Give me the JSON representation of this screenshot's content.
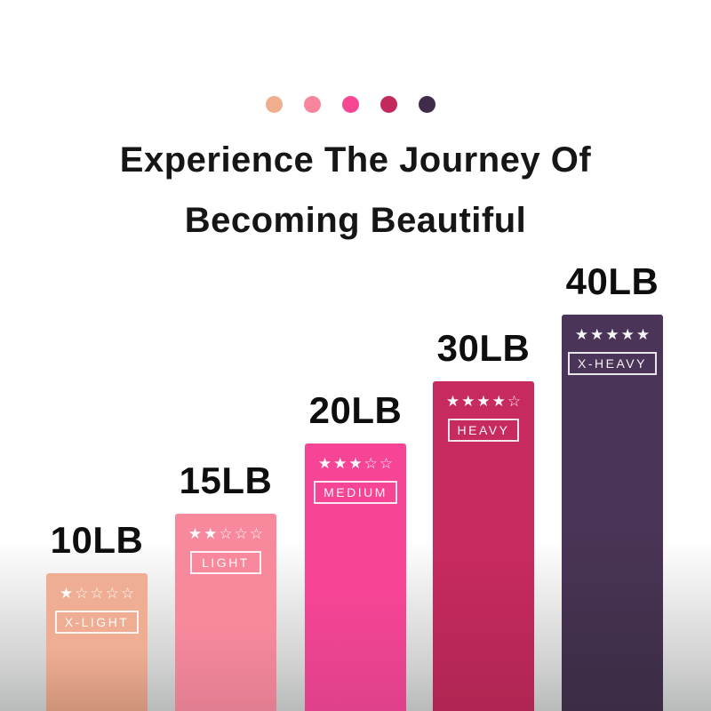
{
  "header": {
    "title_line1": "Experience The Journey Of",
    "title_line2": "Becoming Beautiful"
  },
  "palette": {
    "dots": [
      "#EFAE8D",
      "#F8859B",
      "#F74792",
      "#C32A5C",
      "#3F2C4B"
    ]
  },
  "bars": [
    {
      "weight": "10LB",
      "stars": "★☆☆☆☆",
      "rating": 1,
      "level": "X-LIGHT",
      "color_top": "#EFAE94",
      "color_bottom": "#CE9379"
    },
    {
      "weight": "15LB",
      "stars": "★★☆☆☆",
      "rating": 2,
      "level": "LIGHT",
      "color_top": "#F8899D",
      "color_bottom": "#E27E91"
    },
    {
      "weight": "20LB",
      "stars": "★★★☆☆",
      "rating": 3,
      "level": "MEDIUM",
      "color_top": "#F74596",
      "color_bottom": "#DE4189"
    },
    {
      "weight": "30LB",
      "stars": "★★★★☆",
      "rating": 4,
      "level": "HEAVY",
      "color_top": "#C62A5E",
      "color_bottom": "#AF2553"
    },
    {
      "weight": "40LB",
      "stars": "★★★★★",
      "rating": 5,
      "level": "X-HEAVY",
      "color_top": "#4A3457",
      "color_bottom": "#3A2D44"
    }
  ],
  "chart_data": {
    "type": "bar",
    "title": "Experience The Journey Of Becoming Beautiful",
    "categories": [
      "10LB",
      "15LB",
      "20LB",
      "30LB",
      "40LB"
    ],
    "values": [
      10,
      15,
      20,
      30,
      40
    ],
    "series": [
      {
        "name": "resistance-weight-lb",
        "values": [
          10,
          15,
          20,
          30,
          40
        ]
      },
      {
        "name": "star-rating-of-5",
        "values": [
          1,
          2,
          3,
          4,
          5
        ]
      }
    ],
    "bar_labels": [
      "X-LIGHT",
      "LIGHT",
      "MEDIUM",
      "HEAVY",
      "X-HEAVY"
    ],
    "bar_colors": [
      "#EFAE94",
      "#F8899D",
      "#F74596",
      "#C62A5E",
      "#4A3457"
    ],
    "xlabel": "",
    "ylabel": "",
    "legend_position": "none",
    "grid": false,
    "axes_shown": false
  }
}
